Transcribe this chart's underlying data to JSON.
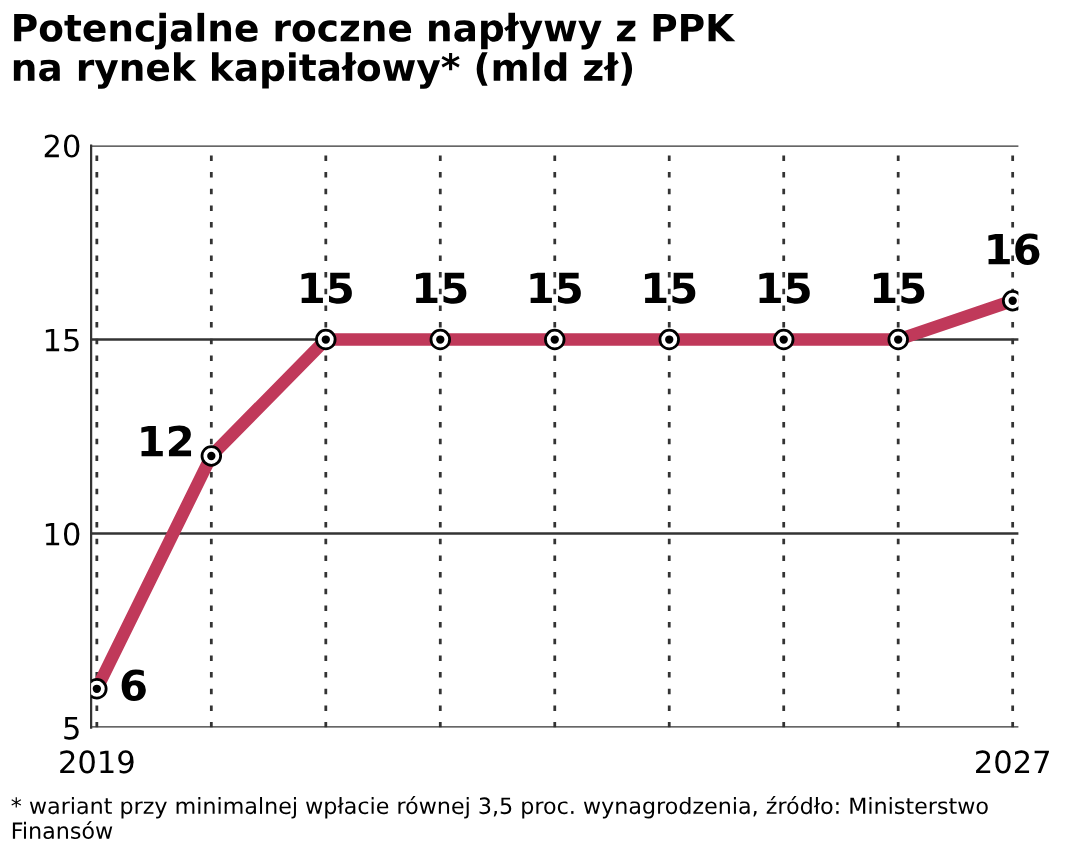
{
  "chart_data": {
    "type": "line",
    "title": "Potencjalne roczne napływy z PPK\nna rynek kapitałowy* (mld zł)",
    "categories": [
      "2019",
      null,
      null,
      null,
      null,
      null,
      null,
      null,
      "2027"
    ],
    "series": [
      {
        "color": "#c0395a",
        "values": [
          6,
          12,
          15,
          15,
          15,
          15,
          15,
          15,
          16
        ]
      }
    ],
    "ylim": [
      5,
      20
    ],
    "yticks": [
      5,
      10,
      15,
      20
    ],
    "grid": true,
    "marker": "circle",
    "data_labels": true,
    "annotations": [
      "* wariant przy minimalnej wpłacie równej 3,5 proc. wynagrodzenia, źródło: Ministerstwo Finansów"
    ]
  }
}
